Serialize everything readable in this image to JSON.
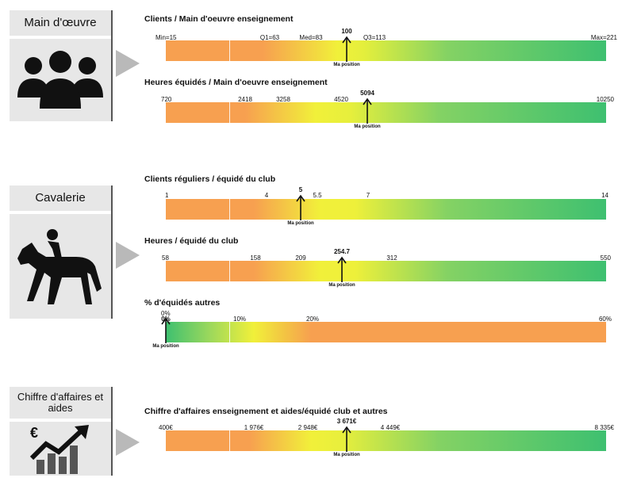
{
  "sections": [
    {
      "title": "Main d'œuvre",
      "icon": "people-group-icon"
    },
    {
      "title": "Cavalerie",
      "icon": "horse-rider-icon"
    },
    {
      "title": "Chiffre d'affaires et aides",
      "icon": "euro-growth-chart-icon"
    }
  ],
  "chart_data": [
    {
      "type": "bar",
      "title": "Clients / Main d'oeuvre enseignement",
      "ticks": [
        "Min=15",
        "Q1=63",
        "Med=83",
        "Q3=113",
        "Max=221"
      ],
      "position_value": "100",
      "position_label": "Ma position",
      "gradient": "orange-to-green"
    },
    {
      "type": "bar",
      "title": "Heures équidés / Main d'oeuvre enseignement",
      "ticks": [
        "720",
        "2418",
        "3258",
        "4520",
        "10250"
      ],
      "position_value": "5094",
      "position_label": "Ma position",
      "gradient": "orange-to-green"
    },
    {
      "type": "bar",
      "title": "Clients réguliers / équidé du club",
      "ticks": [
        "1",
        "4",
        "5.5",
        "7",
        "14"
      ],
      "position_value": "5",
      "position_label": "Ma position",
      "gradient": "orange-to-green"
    },
    {
      "type": "bar",
      "title": "Heures / équidé du club",
      "ticks": [
        "58",
        "158",
        "209",
        "312",
        "550"
      ],
      "position_value": "254.7",
      "position_label": "Ma position",
      "gradient": "orange-to-green"
    },
    {
      "type": "bar",
      "title": "% d'équidés autres",
      "ticks": [
        "0%",
        "10%",
        "20%",
        "60%"
      ],
      "position_value": "0%",
      "position_label": "Ma position",
      "gradient": "green-to-orange"
    },
    {
      "type": "bar",
      "title": "Chiffre d'affaires enseignement et aides/équidé club et autres",
      "ticks": [
        "400€",
        "1 976€",
        "2 948€",
        "4 449€",
        "8 335€"
      ],
      "position_value": "3 671€",
      "position_label": "Ma position",
      "gradient": "orange-to-green"
    }
  ],
  "colors": {
    "orange": "#f7a050",
    "yellow": "#f1f03a",
    "green": "#3ec070",
    "panel": "#e7e7e7",
    "arrow": "#b9b9b9"
  }
}
